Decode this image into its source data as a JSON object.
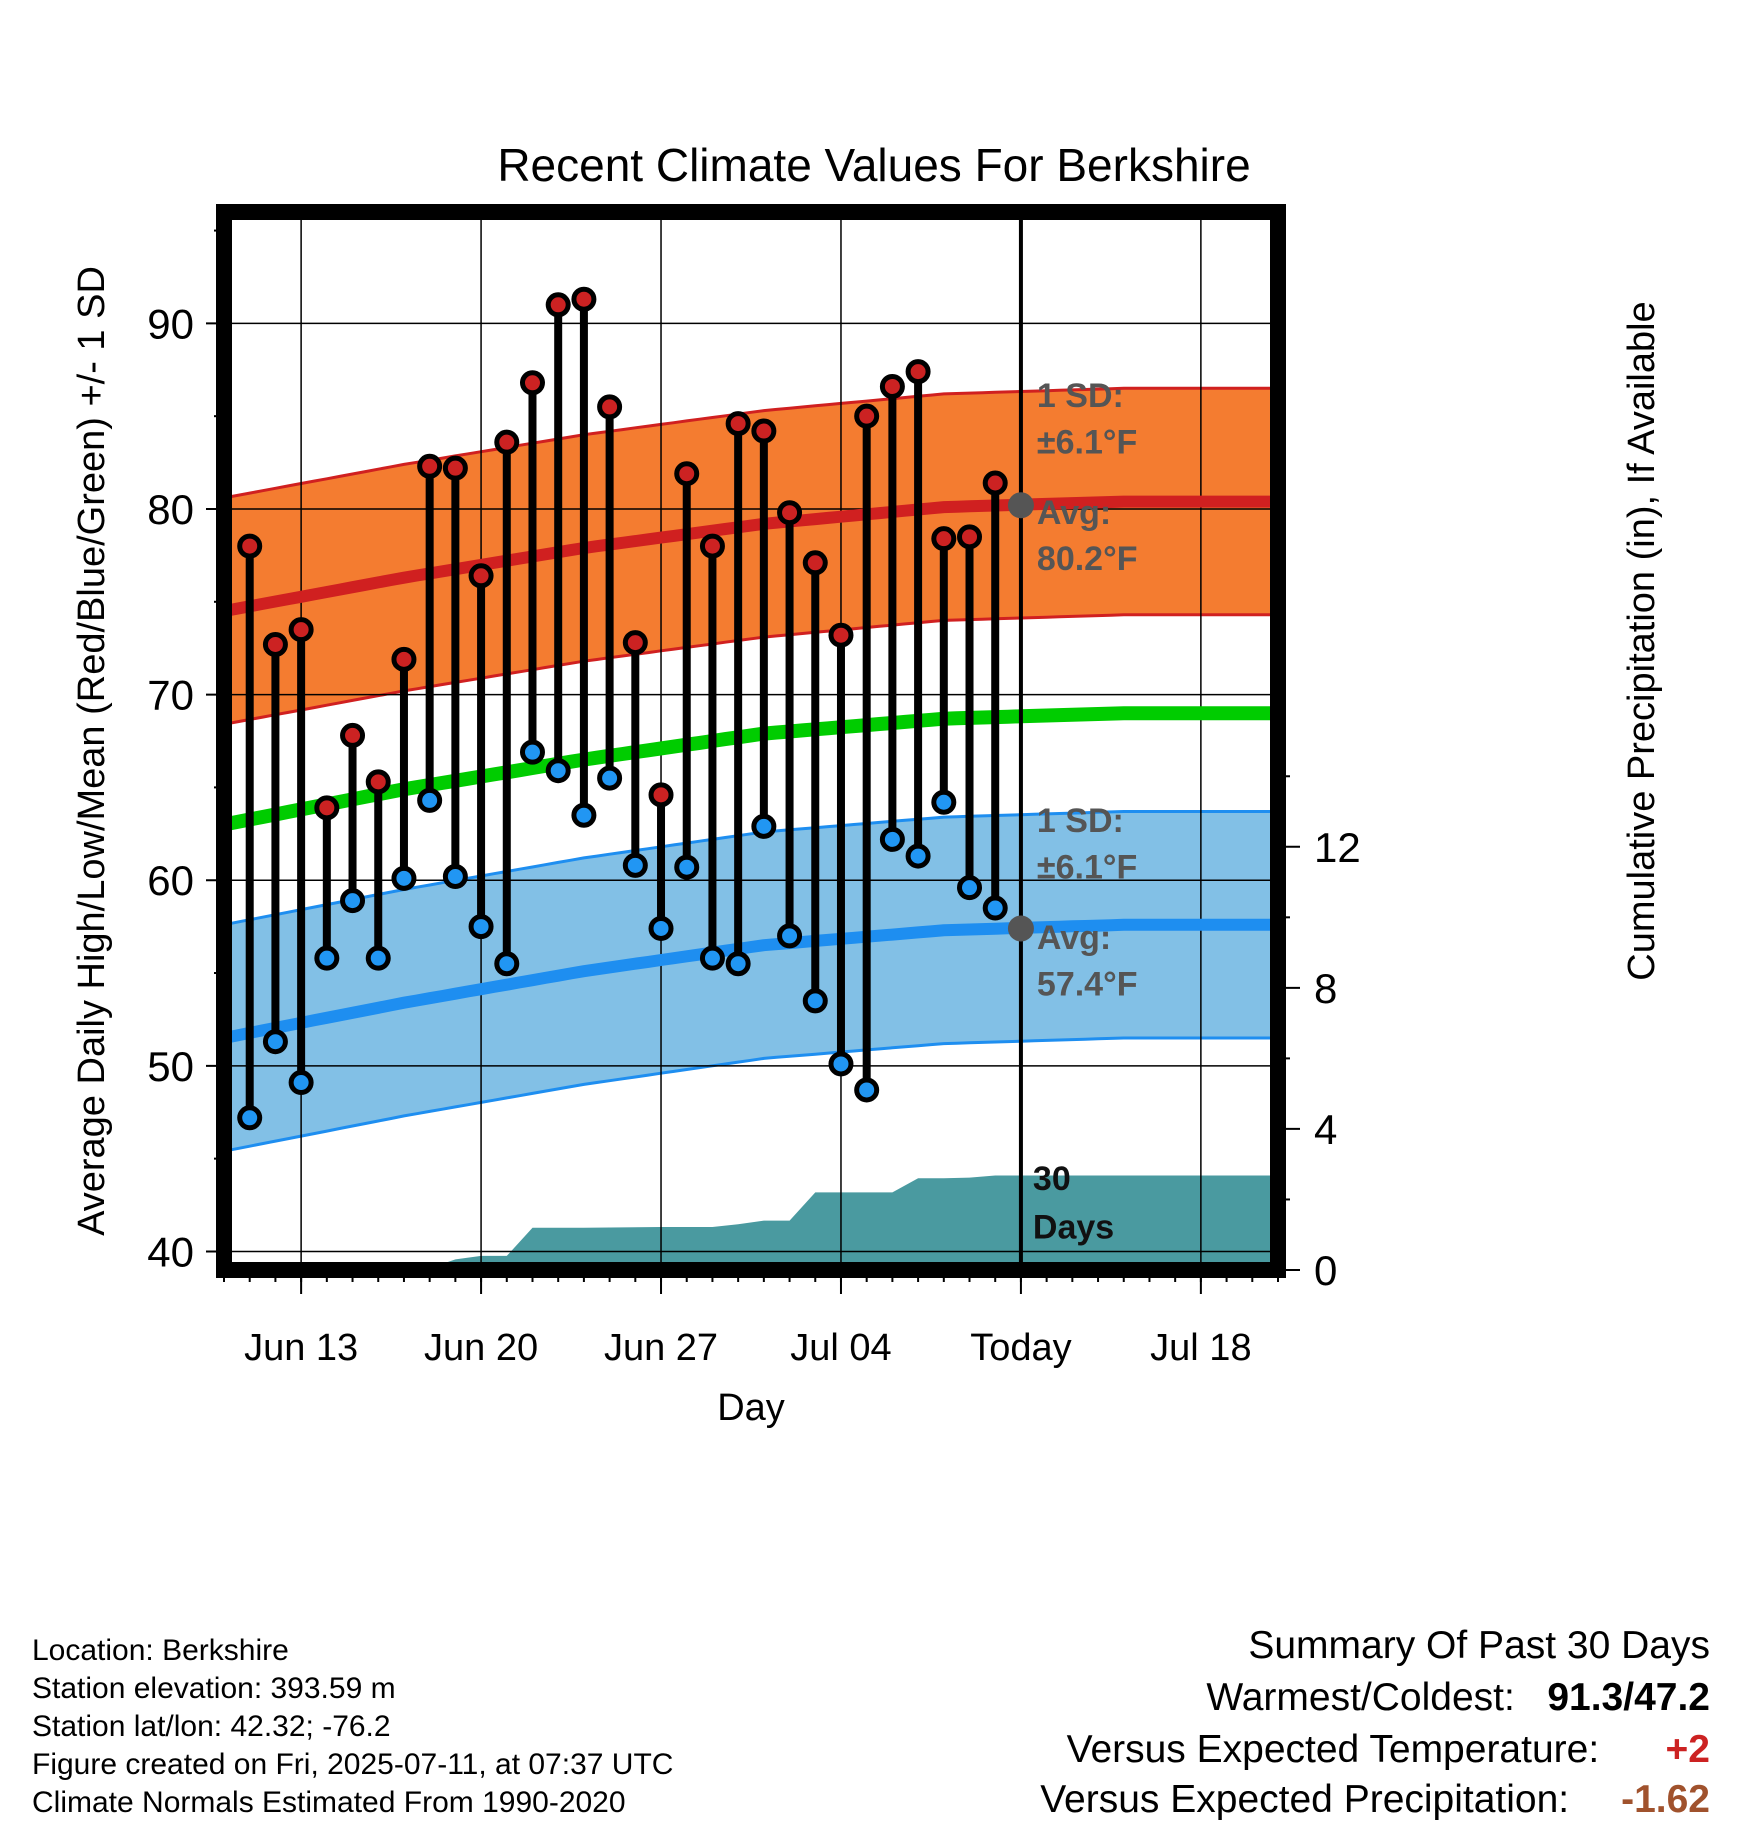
{
  "title": "Recent Climate Values For Berkshire",
  "chart_data": {
    "type": "scatter",
    "x_unit": "day",
    "xlabel": "Day",
    "ylabel_left": "Average Daily High/Low/Mean (Red/Blue/Green) +/- 1 SD",
    "ylabel_right": "Cumulative Precipitation (in), If Available",
    "ylim_left": [
      39,
      96
    ],
    "ylim_right": [
      0,
      30
    ],
    "yticks_left": [
      "40",
      "50",
      "60",
      "70",
      "80",
      "90"
    ],
    "yticks_right": [
      "0",
      "4",
      "8",
      "12"
    ],
    "xrange": [
      "2025-06-10",
      "2025-07-21"
    ],
    "xticks": [
      {
        "date": "2025-06-13",
        "label": "Jun 13"
      },
      {
        "date": "2025-06-20",
        "label": "Jun 20"
      },
      {
        "date": "2025-06-27",
        "label": "Jun 27"
      },
      {
        "date": "2025-07-04",
        "label": "Jul 04"
      },
      {
        "date": "2025-07-11",
        "label": "Today"
      },
      {
        "date": "2025-07-18",
        "label": "Jul 18"
      }
    ],
    "today": "2025-07-11",
    "grid": true,
    "daily_observed": {
      "dates": [
        "2025-06-11",
        "2025-06-12",
        "2025-06-13",
        "2025-06-14",
        "2025-06-15",
        "2025-06-16",
        "2025-06-17",
        "2025-06-18",
        "2025-06-19",
        "2025-06-20",
        "2025-06-21",
        "2025-06-22",
        "2025-06-23",
        "2025-06-24",
        "2025-06-25",
        "2025-06-26",
        "2025-06-27",
        "2025-06-28",
        "2025-06-29",
        "2025-06-30",
        "2025-07-01",
        "2025-07-02",
        "2025-07-03",
        "2025-07-04",
        "2025-07-05",
        "2025-07-06",
        "2025-07-07",
        "2025-07-08",
        "2025-07-09",
        "2025-07-10"
      ],
      "high": [
        78.0,
        72.7,
        73.5,
        63.9,
        67.8,
        65.3,
        71.9,
        82.3,
        82.2,
        76.4,
        83.6,
        86.8,
        91.0,
        91.3,
        85.5,
        72.8,
        64.6,
        81.9,
        78.0,
        84.6,
        84.2,
        79.8,
        77.1,
        73.2,
        85.0,
        86.6,
        87.4,
        78.4,
        78.5,
        81.4
      ],
      "low": [
        47.2,
        51.3,
        49.1,
        55.8,
        58.9,
        55.8,
        60.1,
        64.3,
        60.2,
        57.5,
        55.5,
        66.9,
        65.9,
        63.5,
        65.5,
        60.8,
        57.4,
        60.7,
        55.8,
        55.5,
        62.9,
        57.0,
        53.5,
        50.1,
        48.7,
        62.2,
        61.3,
        64.2,
        59.6,
        58.5
      ]
    },
    "normals": {
      "dates": [
        "2025-06-10",
        "2025-06-17",
        "2025-06-24",
        "2025-07-01",
        "2025-07-08",
        "2025-07-15",
        "2025-07-21"
      ],
      "avg_high": [
        74.5,
        76.3,
        77.9,
        79.2,
        80.1,
        80.4,
        80.4
      ],
      "avg_low": [
        51.5,
        53.4,
        55.1,
        56.5,
        57.3,
        57.6,
        57.6
      ],
      "avg_mean": [
        63.0,
        64.9,
        66.5,
        67.9,
        68.7,
        69.0,
        69.0
      ],
      "sd_high": 6.1,
      "sd_low": 6.1
    },
    "cumulative_precip": {
      "dates": [
        "2025-06-10",
        "2025-06-14",
        "2025-06-17",
        "2025-06-18",
        "2025-06-19",
        "2025-06-20",
        "2025-06-21",
        "2025-06-22",
        "2025-06-24",
        "2025-06-27",
        "2025-06-29",
        "2025-06-30",
        "2025-07-01",
        "2025-07-02",
        "2025-07-03",
        "2025-07-04",
        "2025-07-06",
        "2025-07-07",
        "2025-07-08",
        "2025-07-09",
        "2025-07-10",
        "2025-07-11",
        "2025-07-21"
      ],
      "values": [
        0.0,
        0.0,
        0.0,
        0.05,
        0.3,
        0.4,
        0.4,
        1.2,
        1.2,
        1.22,
        1.22,
        1.3,
        1.4,
        1.4,
        2.2,
        2.2,
        2.2,
        2.6,
        2.6,
        2.62,
        2.68,
        2.68,
        2.68
      ]
    },
    "annotations": {
      "high_sd_label": [
        "1 SD:",
        "±6.1°F"
      ],
      "high_avg_label": [
        "Avg:",
        "80.2°F"
      ],
      "low_sd_label": [
        "1 SD:",
        "±6.1°F"
      ],
      "low_avg_label": [
        "Avg:",
        "57.4°F"
      ],
      "precip_label": [
        "30",
        "Days"
      ],
      "high_avg_value": 80.2,
      "low_avg_value": 57.4
    },
    "colors": {
      "high_band": "#f47c30",
      "high_line": "#d02020",
      "low_band": "#82c0e6",
      "low_line": "#1e8ef0",
      "mean_line": "#00cc00",
      "precip_fill": "#4a9aa0",
      "high_marker": "#cc2222",
      "low_marker": "#2196f3",
      "label_text": "#555555"
    }
  },
  "footer": {
    "location": "Location: Berkshire",
    "elevation": "Station elevation: 393.59 m",
    "latlon": "Station lat/lon: 42.32; -76.2",
    "created": "Figure created on Fri, 2025-07-11, at 07:37 UTC",
    "normals": "Climate Normals Estimated From 1990-2020"
  },
  "summary": {
    "heading": "Summary Of Past 30 Days",
    "warmest_label": "Warmest/Coldest:",
    "warmest_value": "91.3/47.2",
    "temp_label": "Versus Expected Temperature:",
    "temp_value": "+2",
    "precip_label": "Versus Expected Precipitation:",
    "precip_value": "-1.62"
  }
}
